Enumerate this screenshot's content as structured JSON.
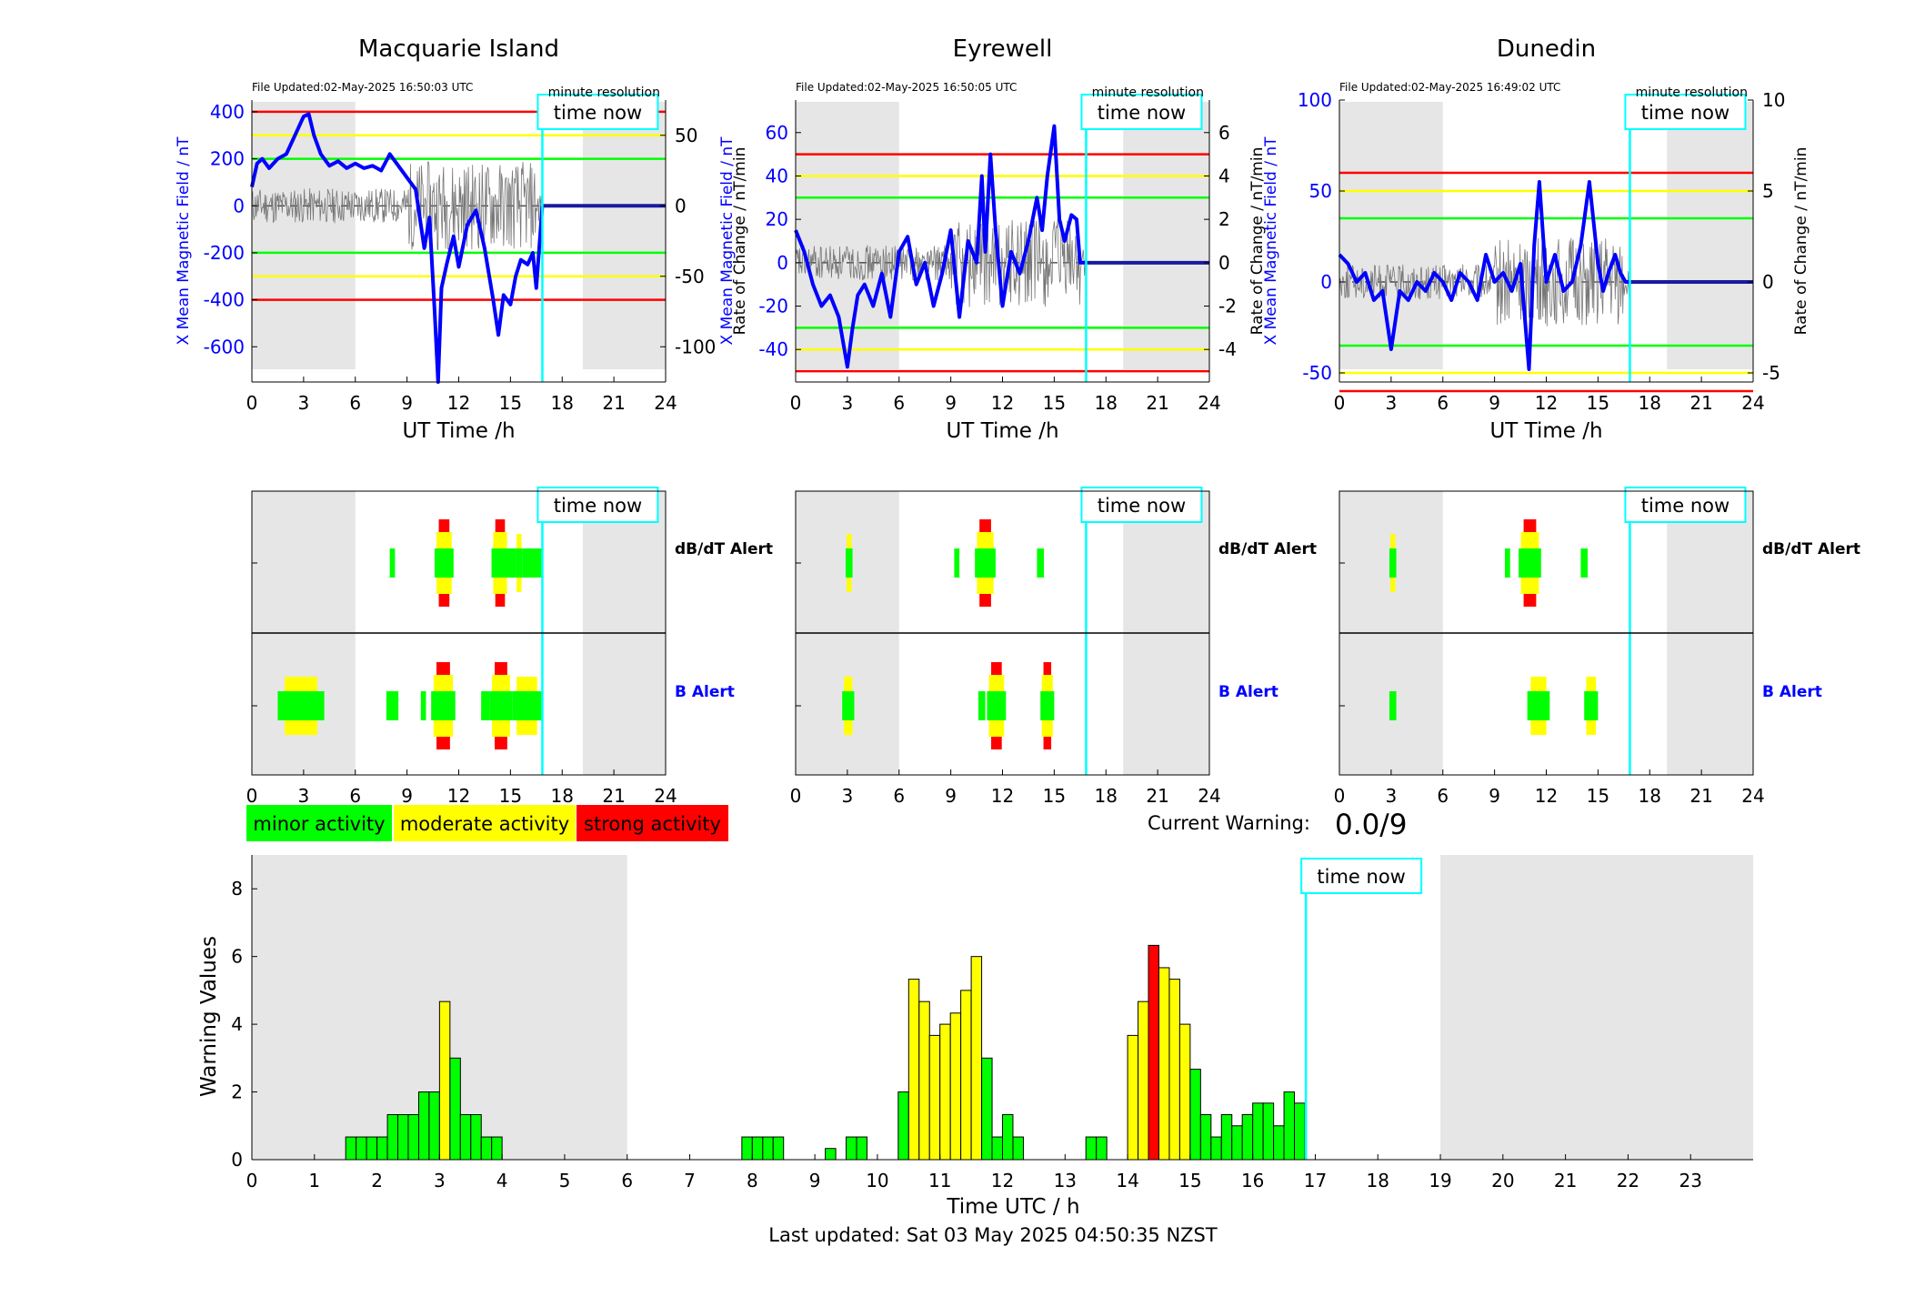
{
  "titles": [
    "Macquarie Island",
    "Eyrewell",
    "Dunedin"
  ],
  "file_updated": [
    "File Updated:02-May-2025 16:50:03 UTC",
    "File Updated:02-May-2025 16:50:05 UTC",
    "File Updated:02-May-2025 16:49:02 UTC"
  ],
  "labels": {
    "minute_resolution": "minute resolution",
    "time_now": "time now",
    "ut_time": "UT Time /h",
    "x_field": "X Mean Magnetic Field / nT",
    "rate": "Rate of Change / nT/min",
    "dbdt_alert": "dB/dT Alert",
    "b_alert": "B Alert",
    "current_warning_label": "Current Warning:",
    "current_warning_value": "0.0/9",
    "warning_values": "Warning Values",
    "time_utc": "Time UTC / h",
    "last_updated": "Last updated: Sat 03 May 2025 04:50:35 NZST"
  },
  "legend": [
    {
      "label": "minor activity",
      "color": "#00ff00"
    },
    {
      "label": "moderate activity",
      "color": "#ffff00"
    },
    {
      "label": "strong activity",
      "color": "#ff0000"
    }
  ],
  "colors": {
    "field": "#0000ff",
    "now": "#00ffff",
    "night": "#e6e6e6",
    "minor": "#00ff00",
    "moderate": "#ffff00",
    "strong": "#ff0000"
  },
  "chart_data": [
    {
      "type": "line",
      "title": "Macquarie Island",
      "xlabel": "UT Time /h",
      "ylabel": "X Mean Magnetic Field / nT",
      "ylabel_right": "Rate of Change / nT/min",
      "xlim": [
        0,
        24
      ],
      "xticks": [
        0,
        3,
        6,
        9,
        12,
        15,
        18,
        21,
        24
      ],
      "ylim": [
        -750,
        450
      ],
      "yticks": [
        -600,
        -400,
        -200,
        0,
        200,
        400
      ],
      "ylim_right": [
        -125,
        75
      ],
      "yticks_right": [
        -100,
        -50,
        0,
        50
      ],
      "thresholds": {
        "minor": 200,
        "moderate": 300,
        "strong": 400
      },
      "night": [
        [
          0,
          6
        ],
        [
          19.2,
          24
        ]
      ],
      "time_now": 16.85,
      "series": [
        {
          "x": [
            0,
            0.3,
            0.6,
            1,
            1.5,
            2,
            2.5,
            3,
            3.3,
            3.6,
            4,
            4.5,
            5,
            5.5,
            6,
            6.5,
            7,
            7.5,
            8,
            8.5,
            9,
            9.5,
            10,
            10.3,
            10.6,
            10.8,
            11,
            11.3,
            11.7,
            12,
            12.5,
            13,
            13.5,
            14,
            14.3,
            14.6,
            15,
            15.3,
            15.6,
            16,
            16.3,
            16.5,
            16.85
          ],
          "y": [
            80,
            180,
            200,
            160,
            200,
            220,
            300,
            380,
            390,
            300,
            220,
            170,
            190,
            160,
            180,
            160,
            170,
            150,
            220,
            170,
            120,
            70,
            -180,
            -50,
            -450,
            -750,
            -350,
            -250,
            -130,
            -260,
            -80,
            -20,
            -180,
            -400,
            -550,
            -380,
            -420,
            -300,
            -230,
            -250,
            -200,
            -350,
            0
          ]
        }
      ]
    },
    {
      "type": "line",
      "title": "Eyrewell",
      "xlabel": "UT Time /h",
      "ylabel": "X Mean Magnetic Field / nT",
      "ylabel_right": "Rate of Change / nT/min",
      "xlim": [
        0,
        24
      ],
      "xticks": [
        0,
        3,
        6,
        9,
        12,
        15,
        18,
        21,
        24
      ],
      "ylim": [
        -55,
        75
      ],
      "yticks": [
        -40,
        -20,
        0,
        20,
        40,
        60
      ],
      "ylim_right": [
        -5.5,
        7.5
      ],
      "yticks_right": [
        -4,
        -2,
        0,
        2,
        4,
        6
      ],
      "thresholds": {
        "minor": 30,
        "moderate": 40,
        "strong": 50
      },
      "night": [
        [
          0,
          6
        ],
        [
          19,
          24
        ]
      ],
      "time_now": 16.85,
      "series": [
        {
          "x": [
            0,
            0.5,
            1,
            1.5,
            2,
            2.5,
            3,
            3.3,
            3.6,
            4,
            4.5,
            5,
            5.5,
            6,
            6.5,
            7,
            7.5,
            8,
            8.5,
            9,
            9.5,
            10,
            10.5,
            10.8,
            11,
            11.3,
            11.6,
            12,
            12.5,
            13,
            13.5,
            14,
            14.3,
            14.6,
            15,
            15.3,
            15.6,
            16,
            16.3,
            16.5,
            16.85
          ],
          "y": [
            15,
            5,
            -10,
            -20,
            -15,
            -25,
            -48,
            -30,
            -15,
            -10,
            -20,
            -5,
            -25,
            5,
            12,
            -10,
            0,
            -20,
            -5,
            15,
            -25,
            10,
            0,
            40,
            5,
            50,
            15,
            -20,
            5,
            -5,
            10,
            30,
            15,
            40,
            63,
            20,
            10,
            22,
            20,
            0,
            0
          ]
        }
      ]
    },
    {
      "type": "line",
      "title": "Dunedin",
      "xlabel": "UT Time /h",
      "ylabel": "X Mean Magnetic Field / nT",
      "ylabel_right": "Rate of Change / nT/min",
      "xlim": [
        0,
        24
      ],
      "xticks": [
        0,
        3,
        6,
        9,
        12,
        15,
        18,
        21,
        24
      ],
      "ylim": [
        -55,
        100
      ],
      "yticks": [
        -50,
        0,
        50,
        100
      ],
      "ylim_right": [
        -5.5,
        10
      ],
      "yticks_right": [
        -5,
        0,
        5,
        10
      ],
      "thresholds": {
        "minor": 35,
        "moderate": 50,
        "strong": 60
      },
      "night": [
        [
          0,
          6
        ],
        [
          19,
          24
        ]
      ],
      "time_now": 16.85,
      "series": [
        {
          "x": [
            0,
            0.5,
            1,
            1.5,
            2,
            2.5,
            3,
            3.5,
            4,
            4.5,
            5,
            5.5,
            6,
            6.5,
            7,
            7.5,
            8,
            8.5,
            9,
            9.5,
            10,
            10.5,
            11,
            11.3,
            11.6,
            12,
            12.5,
            13,
            13.5,
            14,
            14.5,
            15,
            15.3,
            15.6,
            16,
            16.3,
            16.6,
            16.85
          ],
          "y": [
            15,
            10,
            0,
            5,
            -10,
            -5,
            -37,
            -5,
            -10,
            0,
            -5,
            5,
            0,
            -10,
            5,
            0,
            -10,
            15,
            0,
            5,
            -5,
            10,
            -48,
            20,
            55,
            0,
            15,
            -5,
            0,
            20,
            55,
            10,
            -5,
            5,
            15,
            5,
            0,
            0
          ]
        }
      ]
    },
    {
      "type": "bar",
      "title": "",
      "xlabel": "Time UTC / h",
      "ylabel": "Warning Values",
      "xlim": [
        0,
        24
      ],
      "ylim": [
        0,
        9
      ],
      "yticks": [
        0,
        2,
        4,
        6,
        8
      ],
      "xticks": [
        0,
        1,
        2,
        3,
        4,
        5,
        6,
        7,
        8,
        9,
        10,
        11,
        12,
        13,
        14,
        15,
        16,
        17,
        18,
        19,
        20,
        21,
        22,
        23
      ],
      "night": [
        [
          0,
          6
        ],
        [
          19,
          24
        ]
      ],
      "time_now": 16.85,
      "bar_width_h": 0.1667,
      "bars": [
        {
          "t": 1.5,
          "v": 0.67,
          "level": "minor"
        },
        {
          "t": 1.667,
          "v": 0.67,
          "level": "minor"
        },
        {
          "t": 1.833,
          "v": 0.67,
          "level": "minor"
        },
        {
          "t": 2.0,
          "v": 0.67,
          "level": "minor"
        },
        {
          "t": 2.167,
          "v": 1.33,
          "level": "minor"
        },
        {
          "t": 2.333,
          "v": 1.33,
          "level": "minor"
        },
        {
          "t": 2.5,
          "v": 1.33,
          "level": "minor"
        },
        {
          "t": 2.667,
          "v": 2.0,
          "level": "minor"
        },
        {
          "t": 2.833,
          "v": 2.0,
          "level": "minor"
        },
        {
          "t": 3.0,
          "v": 4.67,
          "level": "moderate"
        },
        {
          "t": 3.167,
          "v": 3.0,
          "level": "minor"
        },
        {
          "t": 3.333,
          "v": 1.33,
          "level": "minor"
        },
        {
          "t": 3.5,
          "v": 1.33,
          "level": "minor"
        },
        {
          "t": 3.667,
          "v": 0.67,
          "level": "minor"
        },
        {
          "t": 3.833,
          "v": 0.67,
          "level": "minor"
        },
        {
          "t": 7.833,
          "v": 0.67,
          "level": "minor"
        },
        {
          "t": 8.0,
          "v": 0.67,
          "level": "minor"
        },
        {
          "t": 8.167,
          "v": 0.67,
          "level": "minor"
        },
        {
          "t": 8.333,
          "v": 0.67,
          "level": "minor"
        },
        {
          "t": 9.167,
          "v": 0.33,
          "level": "minor"
        },
        {
          "t": 9.5,
          "v": 0.67,
          "level": "minor"
        },
        {
          "t": 9.667,
          "v": 0.67,
          "level": "minor"
        },
        {
          "t": 10.333,
          "v": 2.0,
          "level": "minor"
        },
        {
          "t": 10.5,
          "v": 5.33,
          "level": "moderate"
        },
        {
          "t": 10.667,
          "v": 4.67,
          "level": "moderate"
        },
        {
          "t": 10.833,
          "v": 3.67,
          "level": "moderate"
        },
        {
          "t": 11.0,
          "v": 4.0,
          "level": "moderate"
        },
        {
          "t": 11.167,
          "v": 4.33,
          "level": "moderate"
        },
        {
          "t": 11.333,
          "v": 5.0,
          "level": "moderate"
        },
        {
          "t": 11.5,
          "v": 6.0,
          "level": "moderate"
        },
        {
          "t": 11.667,
          "v": 3.0,
          "level": "minor"
        },
        {
          "t": 11.833,
          "v": 0.67,
          "level": "minor"
        },
        {
          "t": 12.0,
          "v": 1.33,
          "level": "minor"
        },
        {
          "t": 12.167,
          "v": 0.67,
          "level": "minor"
        },
        {
          "t": 13.333,
          "v": 0.67,
          "level": "minor"
        },
        {
          "t": 13.5,
          "v": 0.67,
          "level": "minor"
        },
        {
          "t": 14.0,
          "v": 3.67,
          "level": "moderate"
        },
        {
          "t": 14.167,
          "v": 4.67,
          "level": "moderate"
        },
        {
          "t": 14.333,
          "v": 6.33,
          "level": "strong"
        },
        {
          "t": 14.5,
          "v": 5.67,
          "level": "moderate"
        },
        {
          "t": 14.667,
          "v": 5.33,
          "level": "moderate"
        },
        {
          "t": 14.833,
          "v": 4.0,
          "level": "moderate"
        },
        {
          "t": 15.0,
          "v": 2.67,
          "level": "minor"
        },
        {
          "t": 15.167,
          "v": 1.33,
          "level": "minor"
        },
        {
          "t": 15.333,
          "v": 0.67,
          "level": "minor"
        },
        {
          "t": 15.5,
          "v": 1.33,
          "level": "minor"
        },
        {
          "t": 15.667,
          "v": 1.0,
          "level": "minor"
        },
        {
          "t": 15.833,
          "v": 1.33,
          "level": "minor"
        },
        {
          "t": 16.0,
          "v": 1.67,
          "level": "minor"
        },
        {
          "t": 16.167,
          "v": 1.67,
          "level": "minor"
        },
        {
          "t": 16.333,
          "v": 1.0,
          "level": "minor"
        },
        {
          "t": 16.5,
          "v": 2.0,
          "level": "minor"
        },
        {
          "t": 16.667,
          "v": 1.67,
          "level": "minor"
        }
      ]
    }
  ],
  "alerts": [
    {
      "dbdt": [
        {
          "t0": 8.0,
          "t1": 8.3,
          "level": "minor"
        },
        {
          "t0": 10.6,
          "t1": 11.7,
          "level": "strong"
        },
        {
          "t0": 13.9,
          "t1": 14.9,
          "level": "strong"
        },
        {
          "t0": 14.9,
          "t1": 15.3,
          "level": "minor"
        },
        {
          "t0": 15.3,
          "t1": 15.7,
          "level": "moderate"
        },
        {
          "t0": 15.7,
          "t1": 16.8,
          "level": "minor"
        }
      ],
      "b": [
        {
          "t0": 1.5,
          "t1": 4.2,
          "level": "moderate"
        },
        {
          "t0": 7.8,
          "t1": 8.5,
          "level": "minor"
        },
        {
          "t0": 9.8,
          "t1": 10.1,
          "level": "minor"
        },
        {
          "t0": 10.4,
          "t1": 11.8,
          "level": "strong"
        },
        {
          "t0": 13.3,
          "t1": 13.8,
          "level": "minor"
        },
        {
          "t0": 13.8,
          "t1": 15.1,
          "level": "strong"
        },
        {
          "t0": 15.1,
          "t1": 16.8,
          "level": "moderate"
        }
      ]
    },
    {
      "dbdt": [
        {
          "t0": 2.9,
          "t1": 3.3,
          "level": "moderate"
        },
        {
          "t0": 9.2,
          "t1": 9.5,
          "level": "minor"
        },
        {
          "t0": 10.4,
          "t1": 11.6,
          "level": "strong"
        },
        {
          "t0": 14.0,
          "t1": 14.4,
          "level": "minor"
        }
      ],
      "b": [
        {
          "t0": 2.7,
          "t1": 3.4,
          "level": "moderate"
        },
        {
          "t0": 10.6,
          "t1": 11.0,
          "level": "minor"
        },
        {
          "t0": 11.1,
          "t1": 12.2,
          "level": "strong"
        },
        {
          "t0": 14.2,
          "t1": 15.0,
          "level": "strong"
        }
      ]
    },
    {
      "dbdt": [
        {
          "t0": 2.9,
          "t1": 3.3,
          "level": "moderate"
        },
        {
          "t0": 9.6,
          "t1": 9.9,
          "level": "minor"
        },
        {
          "t0": 10.4,
          "t1": 11.7,
          "level": "strong"
        },
        {
          "t0": 14.0,
          "t1": 14.4,
          "level": "minor"
        }
      ],
      "b": [
        {
          "t0": 2.9,
          "t1": 3.3,
          "level": "minor"
        },
        {
          "t0": 10.9,
          "t1": 12.2,
          "level": "moderate"
        },
        {
          "t0": 14.2,
          "t1": 15.0,
          "level": "moderate"
        }
      ]
    }
  ]
}
